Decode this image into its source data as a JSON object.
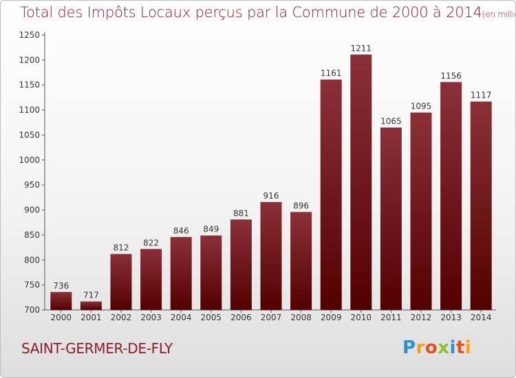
{
  "header": {
    "title": "Total des Impôts Locaux perçus par la Commune de 2000 à 2014",
    "unit": "(en milliers d'€)"
  },
  "footer": {
    "commune": "SAINT-GERMER-DE-FLY",
    "brand": [
      "P",
      "r",
      "o",
      "x",
      "i",
      "t",
      "i"
    ]
  },
  "colors": {
    "bar_top": "#8b3038",
    "bar_bottom": "#530000",
    "title": "#8a1c28"
  },
  "chart_data": {
    "type": "bar",
    "title": "Total des Impôts Locaux perçus par la Commune de 2000 à 2014",
    "xlabel": "",
    "ylabel": "",
    "categories": [
      "2000",
      "2001",
      "2002",
      "2003",
      "2004",
      "2005",
      "2006",
      "2007",
      "2008",
      "2009",
      "2010",
      "2011",
      "2012",
      "2013",
      "2014"
    ],
    "values": [
      736,
      717,
      812,
      822,
      846,
      849,
      881,
      916,
      896,
      1161,
      1211,
      1065,
      1095,
      1156,
      1117
    ],
    "ylim": [
      700,
      1250
    ],
    "yticks": [
      700,
      750,
      800,
      850,
      900,
      950,
      1000,
      1050,
      1100,
      1150,
      1200,
      1250
    ],
    "grid": false,
    "data_labels": true
  }
}
